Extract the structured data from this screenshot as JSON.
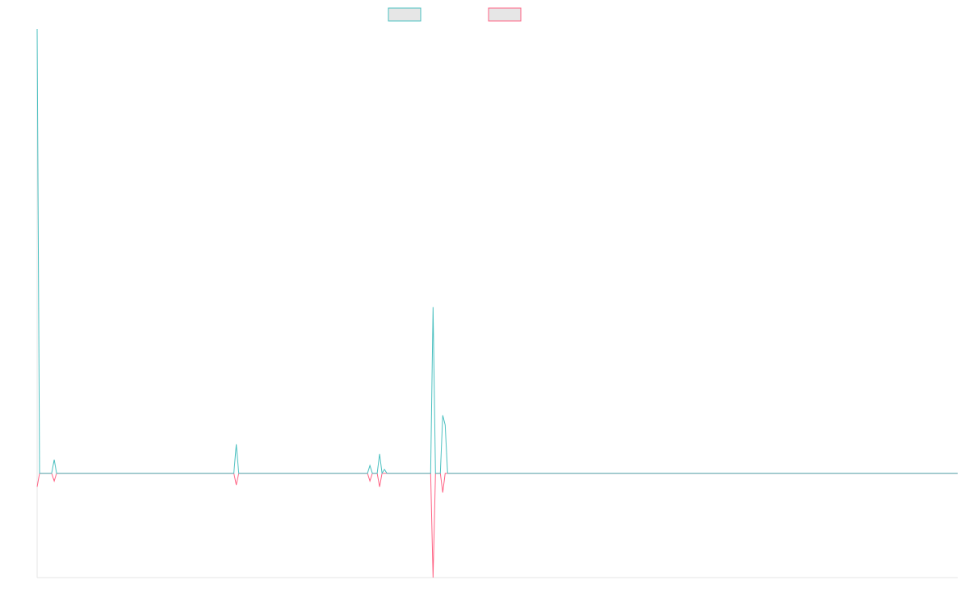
{
  "chart_data": {
    "type": "line",
    "title": "",
    "xlabel": "",
    "ylabel": "",
    "grid": false,
    "legend_position": "top-center",
    "colors": {
      "series_a": "#4bc0c0",
      "series_b": "#ff6384",
      "legend_fill": "#e6e6e6",
      "axis": "#e6e6e6"
    },
    "ylim": [
      -54,
      230
    ],
    "x_count": 380,
    "series": [
      {
        "name": "",
        "color": "#4bc0c0",
        "points": [
          [
            0,
            230
          ],
          [
            1,
            0
          ],
          [
            6,
            0
          ],
          [
            7,
            7
          ],
          [
            8,
            0
          ],
          [
            81,
            0
          ],
          [
            82,
            15
          ],
          [
            83,
            0
          ],
          [
            136,
            0
          ],
          [
            137,
            4
          ],
          [
            138,
            0
          ],
          [
            140,
            0
          ],
          [
            141,
            10
          ],
          [
            142,
            0
          ],
          [
            143,
            2
          ],
          [
            144,
            0
          ],
          [
            162,
            0
          ],
          [
            163,
            86
          ],
          [
            164,
            0
          ],
          [
            166,
            0
          ],
          [
            167,
            30
          ],
          [
            168,
            25
          ],
          [
            169,
            0
          ],
          [
            379,
            0
          ]
        ]
      },
      {
        "name": "",
        "color": "#ff6384",
        "points": [
          [
            0,
            -7
          ],
          [
            1,
            0
          ],
          [
            6,
            0
          ],
          [
            7,
            -4
          ],
          [
            8,
            0
          ],
          [
            81,
            0
          ],
          [
            82,
            -6
          ],
          [
            83,
            0
          ],
          [
            136,
            0
          ],
          [
            137,
            -4
          ],
          [
            138,
            0
          ],
          [
            140,
            0
          ],
          [
            141,
            -7
          ],
          [
            142,
            0
          ],
          [
            162,
            0
          ],
          [
            163,
            -54
          ],
          [
            164,
            0
          ],
          [
            166,
            0
          ],
          [
            167,
            -10
          ],
          [
            168,
            0
          ],
          [
            379,
            0
          ]
        ]
      }
    ]
  }
}
